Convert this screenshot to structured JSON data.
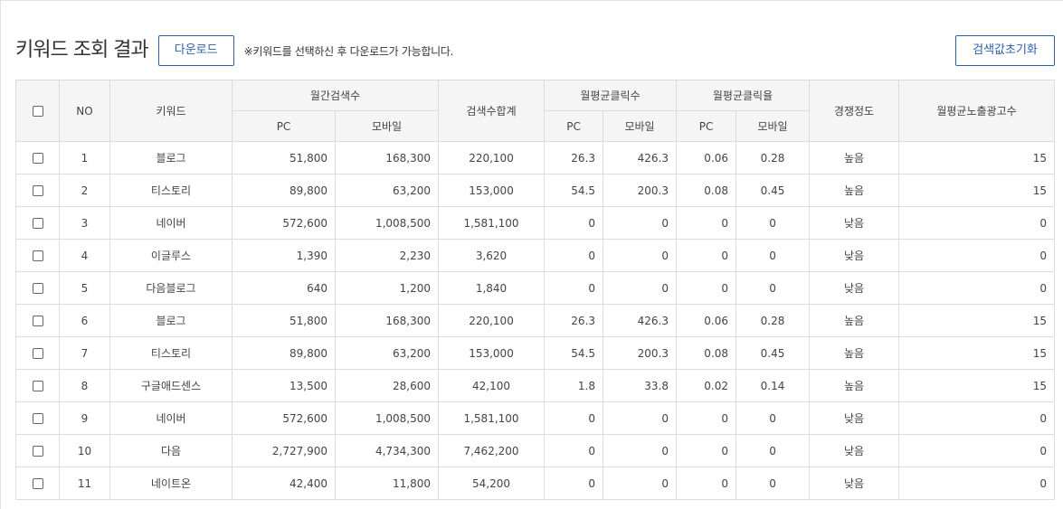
{
  "header": {
    "title": "키워드 조회 결과",
    "download_label": "다운로드",
    "notice": "※키워드를 선택하신 후 다운로드가 가능합니다.",
    "reset_label": "검색값초기화"
  },
  "table": {
    "headers": {
      "no": "NO",
      "keyword": "키워드",
      "monthly_search": "월간검색수",
      "total_search": "검색수합계",
      "avg_clicks": "월평균클릭수",
      "avg_ctr": "월평균클릭율",
      "competition": "경쟁정도",
      "avg_ads": "월평균노출광고수",
      "pc": "PC",
      "mobile": "모바일"
    },
    "rows": [
      {
        "no": "1",
        "keyword": "블로그",
        "pc": "51,800",
        "mobile": "168,300",
        "total": "220,100",
        "click_pc": "26.3",
        "click_mobile": "426.3",
        "ctr_pc": "0.06",
        "ctr_mobile": "0.28",
        "competition": "높음",
        "ads": "15"
      },
      {
        "no": "2",
        "keyword": "티스토리",
        "pc": "89,800",
        "mobile": "63,200",
        "total": "153,000",
        "click_pc": "54.5",
        "click_mobile": "200.3",
        "ctr_pc": "0.08",
        "ctr_mobile": "0.45",
        "competition": "높음",
        "ads": "15"
      },
      {
        "no": "3",
        "keyword": "네이버",
        "pc": "572,600",
        "mobile": "1,008,500",
        "total": "1,581,100",
        "click_pc": "0",
        "click_mobile": "0",
        "ctr_pc": "0",
        "ctr_mobile": "0",
        "competition": "낮음",
        "ads": "0"
      },
      {
        "no": "4",
        "keyword": "이글루스",
        "pc": "1,390",
        "mobile": "2,230",
        "total": "3,620",
        "click_pc": "0",
        "click_mobile": "0",
        "ctr_pc": "0",
        "ctr_mobile": "0",
        "competition": "낮음",
        "ads": "0"
      },
      {
        "no": "5",
        "keyword": "다음블로그",
        "pc": "640",
        "mobile": "1,200",
        "total": "1,840",
        "click_pc": "0",
        "click_mobile": "0",
        "ctr_pc": "0",
        "ctr_mobile": "0",
        "competition": "낮음",
        "ads": "0"
      },
      {
        "no": "6",
        "keyword": "블로그",
        "pc": "51,800",
        "mobile": "168,300",
        "total": "220,100",
        "click_pc": "26.3",
        "click_mobile": "426.3",
        "ctr_pc": "0.06",
        "ctr_mobile": "0.28",
        "competition": "높음",
        "ads": "15"
      },
      {
        "no": "7",
        "keyword": "티스토리",
        "pc": "89,800",
        "mobile": "63,200",
        "total": "153,000",
        "click_pc": "54.5",
        "click_mobile": "200.3",
        "ctr_pc": "0.08",
        "ctr_mobile": "0.45",
        "competition": "높음",
        "ads": "15"
      },
      {
        "no": "8",
        "keyword": "구글애드센스",
        "pc": "13,500",
        "mobile": "28,600",
        "total": "42,100",
        "click_pc": "1.8",
        "click_mobile": "33.8",
        "ctr_pc": "0.02",
        "ctr_mobile": "0.14",
        "competition": "높음",
        "ads": "15"
      },
      {
        "no": "9",
        "keyword": "네이버",
        "pc": "572,600",
        "mobile": "1,008,500",
        "total": "1,581,100",
        "click_pc": "0",
        "click_mobile": "0",
        "ctr_pc": "0",
        "ctr_mobile": "0",
        "competition": "낮음",
        "ads": "0"
      },
      {
        "no": "10",
        "keyword": "다음",
        "pc": "2,727,900",
        "mobile": "4,734,300",
        "total": "7,462,200",
        "click_pc": "0",
        "click_mobile": "0",
        "ctr_pc": "0",
        "ctr_mobile": "0",
        "competition": "낮음",
        "ads": "0"
      },
      {
        "no": "11",
        "keyword": "네이트온",
        "pc": "42,400",
        "mobile": "11,800",
        "total": "54,200",
        "click_pc": "0",
        "click_mobile": "0",
        "ctr_pc": "0",
        "ctr_mobile": "0",
        "competition": "낮음",
        "ads": "0"
      }
    ]
  }
}
